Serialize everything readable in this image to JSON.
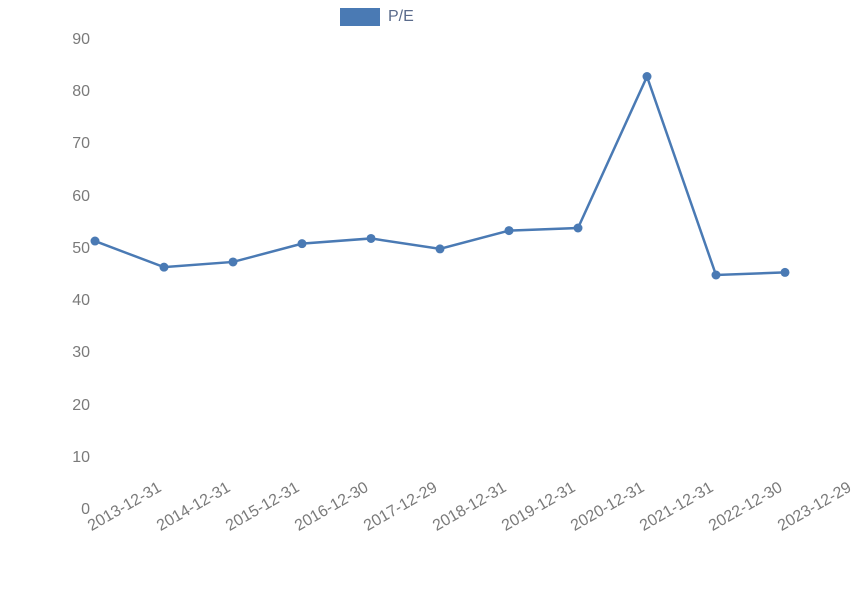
{
  "chart": {
    "type": "line",
    "legend": {
      "label": "P/E",
      "swatch_color": "#4a7ab4",
      "text_color": "#5a6b8c"
    },
    "background_color": "#ffffff",
    "series_color": "#4a7ab4",
    "line_width": 2.5,
    "marker_radius": 4.5,
    "axis_text_color": "#7a7a7a",
    "axis_fontsize": 16,
    "ylim": [
      0,
      90
    ],
    "ytick_step": 10,
    "yticks": [
      0,
      10,
      20,
      30,
      40,
      50,
      60,
      70,
      80,
      90
    ],
    "x_labels": [
      "2013-12-31",
      "2014-12-31",
      "2015-12-31",
      "2016-12-30",
      "2017-12-29",
      "2018-12-31",
      "2019-12-31",
      "2020-12-31",
      "2021-12-31",
      "2022-12-30",
      "2023-12-29"
    ],
    "values": [
      51.5,
      46.5,
      47.5,
      51,
      52,
      50,
      53.5,
      54,
      83,
      45,
      45.5
    ],
    "x_label_rotation_deg": -30
  }
}
